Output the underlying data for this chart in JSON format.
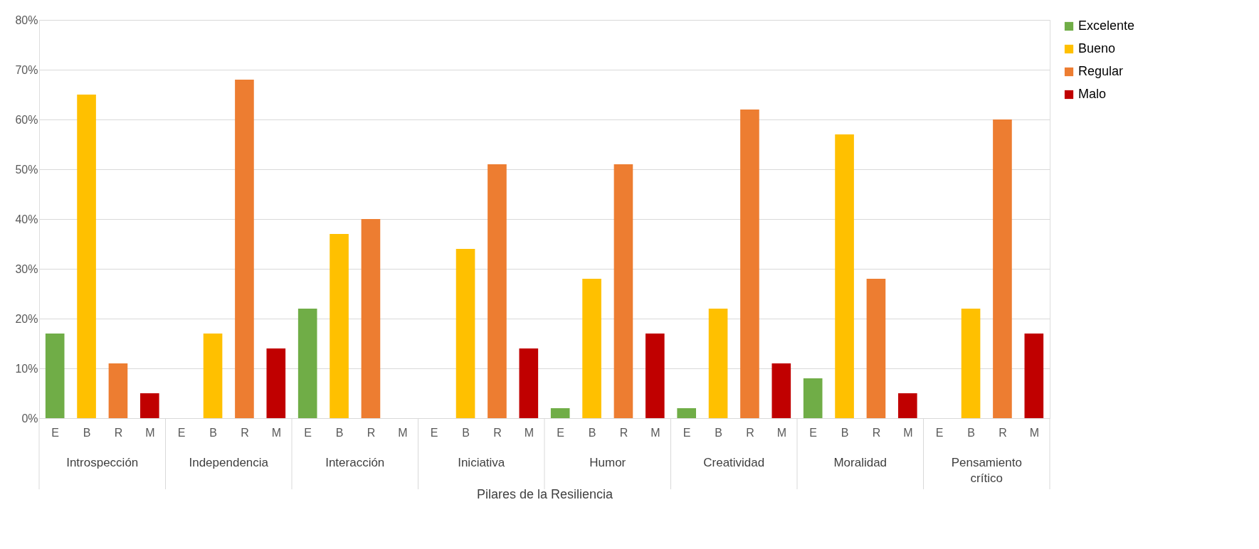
{
  "chart_data": {
    "type": "bar",
    "xlabel": "Pilares de la Resiliencia",
    "categories": [
      "E",
      "B",
      "R",
      "M",
      "E",
      "B",
      "R",
      "M",
      "E",
      "B",
      "R",
      "M",
      "E",
      "B",
      "R",
      "M",
      "E",
      "B",
      "R",
      "M",
      "E",
      "B",
      "R",
      "M",
      "E",
      "B",
      "R",
      "M",
      "E",
      "B",
      "R",
      "M"
    ],
    "annotations": [
      "Introspección",
      "Independencia",
      "Interacción",
      "Iniciativa",
      "Humor",
      "Creatividad",
      "Moralidad",
      "Pensamiento crítico"
    ],
    "series": [
      {
        "name": "Excelente",
        "color": "#70ad47",
        "values": [
          17,
          null,
          null,
          null,
          0,
          null,
          null,
          null,
          22,
          null,
          null,
          null,
          0,
          null,
          null,
          null,
          2,
          null,
          null,
          null,
          2,
          null,
          null,
          null,
          8,
          null,
          null,
          null,
          0,
          null,
          null,
          null
        ]
      },
      {
        "name": "Bueno",
        "color": "#ffc000",
        "values": [
          null,
          65,
          null,
          null,
          null,
          17,
          null,
          null,
          null,
          37,
          null,
          null,
          null,
          34,
          null,
          null,
          null,
          28,
          null,
          null,
          null,
          22,
          null,
          null,
          null,
          57,
          null,
          null,
          null,
          22,
          null,
          null
        ]
      },
      {
        "name": "Regular",
        "color": "#ed7d31",
        "values": [
          null,
          null,
          11,
          null,
          null,
          null,
          68,
          null,
          null,
          null,
          40,
          null,
          null,
          null,
          51,
          null,
          null,
          null,
          51,
          null,
          null,
          null,
          62,
          null,
          null,
          null,
          28,
          null,
          null,
          null,
          60,
          null
        ]
      },
      {
        "name": "Malo",
        "color": "#c00000",
        "values": [
          null,
          null,
          null,
          5,
          null,
          null,
          null,
          14,
          null,
          null,
          null,
          0,
          null,
          null,
          null,
          14,
          null,
          null,
          null,
          17,
          null,
          null,
          null,
          11,
          null,
          null,
          null,
          5,
          null,
          null,
          null,
          17
        ]
      }
    ],
    "ylim": [
      0,
      80
    ],
    "yticks": [
      {
        "value": 0,
        "label": "0%"
      },
      {
        "value": 10,
        "label": "10%"
      },
      {
        "value": 20,
        "label": "20%"
      },
      {
        "value": 30,
        "label": "30%"
      },
      {
        "value": 40,
        "label": "40%"
      },
      {
        "value": 50,
        "label": "50%"
      },
      {
        "value": 60,
        "label": "60%"
      },
      {
        "value": 70,
        "label": "70%"
      },
      {
        "value": 80,
        "label": "80%"
      }
    ],
    "grid": "y",
    "legend": "right"
  }
}
